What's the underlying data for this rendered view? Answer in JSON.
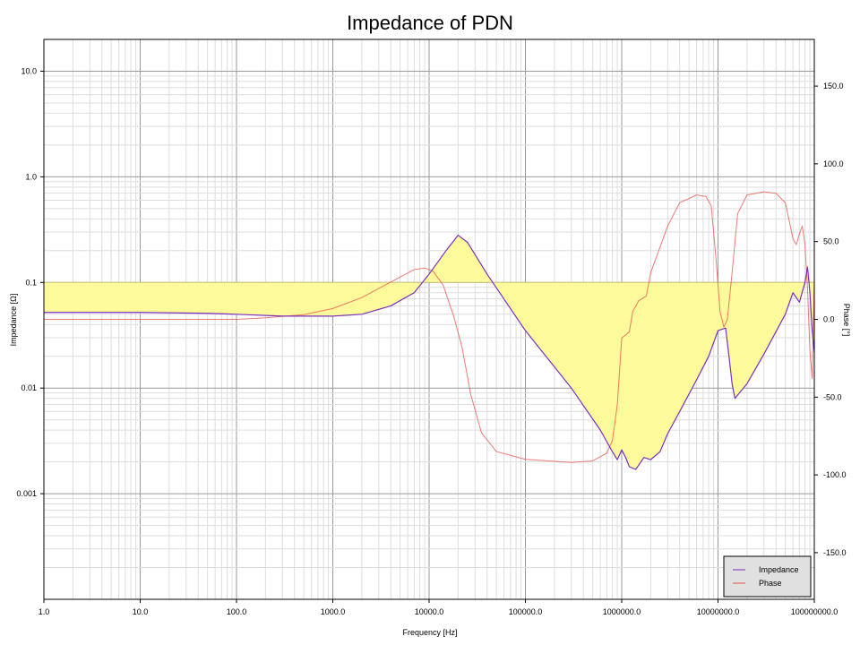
{
  "chart_data": {
    "type": "line",
    "title": "Impedance of PDN",
    "xlabel": "Frequency [Hz]",
    "ylabel_left": "Impedance [Ω]",
    "ylabel_right": "Phase [°]",
    "x_scale": "log",
    "y_left_scale": "log",
    "xlim": [
      1,
      100000000
    ],
    "ylim_left": [
      0.0001,
      20
    ],
    "ylim_right": [
      -180,
      180
    ],
    "grid": true,
    "legend_position": "bottom-right",
    "x_ticks": [
      "1.0",
      "10.0",
      "100.0",
      "1000.0",
      "10000.0",
      "100000.0",
      "1000000.0",
      "10000000.0",
      "100000000.0"
    ],
    "y_left_ticks": [
      "0.001",
      "0.01",
      "0.1",
      "1.0",
      "10.0"
    ],
    "y_right_ticks": [
      "-150.0",
      "-100.0",
      "-50.0",
      "0.0",
      "50.0",
      "100.0",
      "150.0"
    ],
    "target_impedance": 0.1,
    "colors": {
      "impedance": "#7b2fbe",
      "phase": "#e8504a",
      "fill": "#fdfa9c",
      "grid_major": "#999999",
      "grid_minor": "#dddddd"
    },
    "series": [
      {
        "name": "Impedance",
        "axis": "left",
        "x": [
          1,
          10,
          50,
          100,
          300,
          1000,
          2000,
          4000,
          7000,
          10000,
          15000,
          20000,
          25000,
          40000,
          100000,
          300000,
          600000,
          800000,
          900000,
          1000000,
          1100000,
          1200000,
          1400000,
          1700000,
          2000000,
          2500000,
          3000000,
          4000000,
          6000000,
          8000000,
          10000000,
          12000000,
          13000000,
          14000000,
          15000000,
          20000000,
          30000000,
          50000000,
          60000000,
          70000000,
          80000000,
          85000000,
          90000000,
          95000000,
          100000000
        ],
        "y": [
          0.052,
          0.052,
          0.051,
          0.05,
          0.048,
          0.048,
          0.05,
          0.06,
          0.08,
          0.12,
          0.2,
          0.28,
          0.24,
          0.12,
          0.035,
          0.01,
          0.004,
          0.0025,
          0.0021,
          0.0026,
          0.0022,
          0.0018,
          0.0017,
          0.0022,
          0.0021,
          0.0025,
          0.0037,
          0.006,
          0.012,
          0.02,
          0.035,
          0.037,
          0.02,
          0.011,
          0.008,
          0.011,
          0.021,
          0.05,
          0.08,
          0.065,
          0.1,
          0.14,
          0.08,
          0.035,
          0.022
        ]
      },
      {
        "name": "Phase",
        "axis": "right",
        "x": [
          1,
          10,
          50,
          100,
          200,
          500,
          1000,
          2000,
          4000,
          7000,
          9000,
          11000,
          14000,
          18000,
          22000,
          27000,
          35000,
          50000,
          100000,
          300000,
          500000,
          700000,
          800000,
          900000,
          1000000,
          1100000,
          1200000,
          1300000,
          1500000,
          1800000,
          2000000,
          3000000,
          4000000,
          6000000,
          7500000,
          8500000,
          9500000,
          10500000,
          11500000,
          12500000,
          14000000,
          16000000,
          20000000,
          30000000,
          40000000,
          50000000,
          60000000,
          65000000,
          70000000,
          75000000,
          80000000,
          85000000,
          90000000,
          95000000,
          100000000
        ],
        "y": [
          0,
          0,
          0,
          0,
          1,
          3,
          7,
          14,
          24,
          32,
          33,
          31,
          22,
          2,
          -18,
          -48,
          -73,
          -85,
          -90,
          -92,
          -91,
          -86,
          -78,
          -55,
          -12,
          -10,
          -8,
          5,
          12,
          15,
          30,
          60,
          75,
          80,
          79,
          73,
          40,
          5,
          -5,
          0,
          30,
          68,
          80,
          82,
          81,
          75,
          52,
          48,
          55,
          60,
          48,
          20,
          -20,
          -38,
          25
        ]
      }
    ],
    "legend": [
      "Impedance",
      "Phase"
    ]
  }
}
